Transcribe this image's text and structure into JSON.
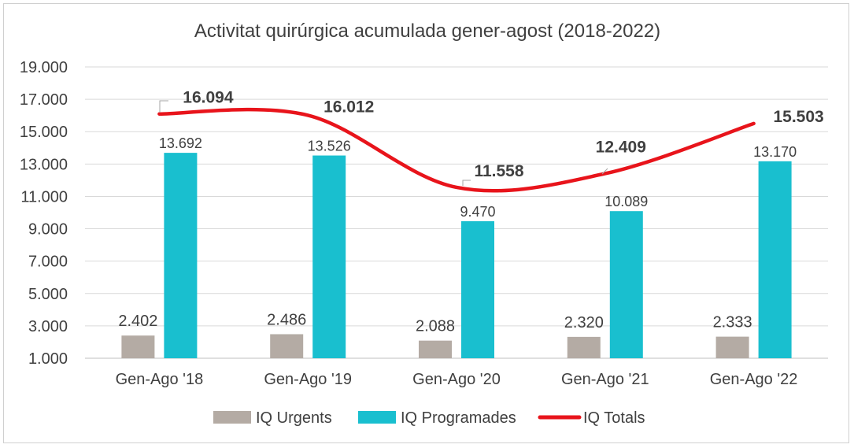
{
  "chart_data": {
    "type": "bar",
    "title": "Activitat quirúrgica acumulada gener-agost (2018-2022)",
    "categories": [
      "Gen-Ago '18",
      "Gen-Ago '19",
      "Gen-Ago '20",
      "Gen-Ago '21",
      "Gen-Ago '22"
    ],
    "series": [
      {
        "name": "IQ Urgents",
        "type": "bar",
        "color": "#b4aba4",
        "values": [
          2402,
          2486,
          2088,
          2320,
          2333
        ],
        "labels": [
          "2.402",
          "2.486",
          "2.088",
          "2.320",
          "2.333"
        ]
      },
      {
        "name": "IQ Programades",
        "type": "bar",
        "color": "#19bfcf",
        "values": [
          13692,
          13526,
          9470,
          10089,
          13170
        ],
        "labels": [
          "13.692",
          "13.526",
          "9.470",
          "10.089",
          "13.170"
        ]
      },
      {
        "name": "IQ Totals",
        "type": "line",
        "smooth": true,
        "color": "#e8141b",
        "values": [
          16094,
          16012,
          11558,
          12409,
          15503
        ],
        "labels": [
          "16.094",
          "16.012",
          "11.558",
          "12.409",
          "15.503"
        ]
      }
    ],
    "ylim": [
      1000,
      19000
    ],
    "yticks": [
      1000,
      3000,
      5000,
      7000,
      9000,
      11000,
      13000,
      15000,
      17000,
      19000
    ],
    "ytick_labels": [
      "1.000",
      "3.000",
      "5.000",
      "7.000",
      "9.000",
      "11.000",
      "13.000",
      "15.000",
      "17.000",
      "19.000"
    ],
    "grid": true,
    "legend_position": "bottom"
  }
}
